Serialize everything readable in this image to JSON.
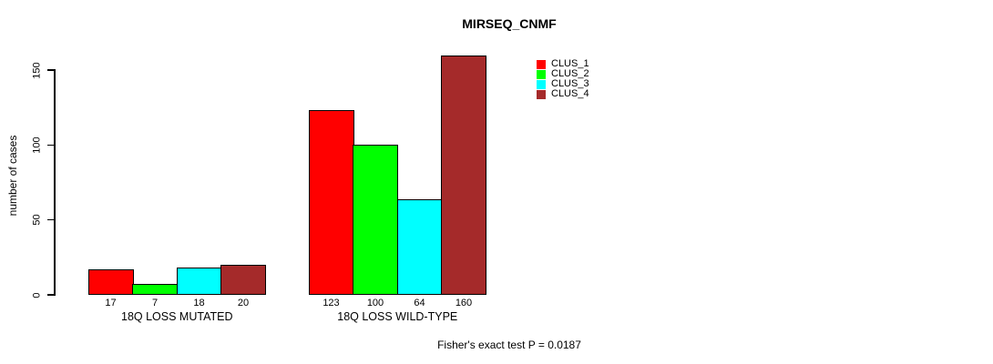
{
  "chart_data": {
    "type": "bar",
    "title": "MIRSEQ_CNMF",
    "ylabel": "number of cases",
    "xlabel": "",
    "ylim": [
      0,
      150
    ],
    "yticks": [
      "0",
      "50",
      "100",
      "150"
    ],
    "ytick_values": [
      0,
      50,
      100,
      150
    ],
    "grid": false,
    "legend_position": "top-right",
    "categories": [
      "18Q LOSS MUTATED",
      "18Q LOSS WILD-TYPE"
    ],
    "series": [
      {
        "name": "CLUS_1",
        "color": "#ff0000",
        "values": [
          17,
          123
        ]
      },
      {
        "name": "CLUS_2",
        "color": "#00ff00",
        "values": [
          7,
          100
        ]
      },
      {
        "name": "CLUS_3",
        "color": "#00ffff",
        "values": [
          18,
          64
        ]
      },
      {
        "name": "CLUS_4",
        "color": "#a52a2a",
        "values": [
          20,
          160
        ]
      }
    ],
    "annotation": "Fisher's exact test P = 0.0187"
  }
}
